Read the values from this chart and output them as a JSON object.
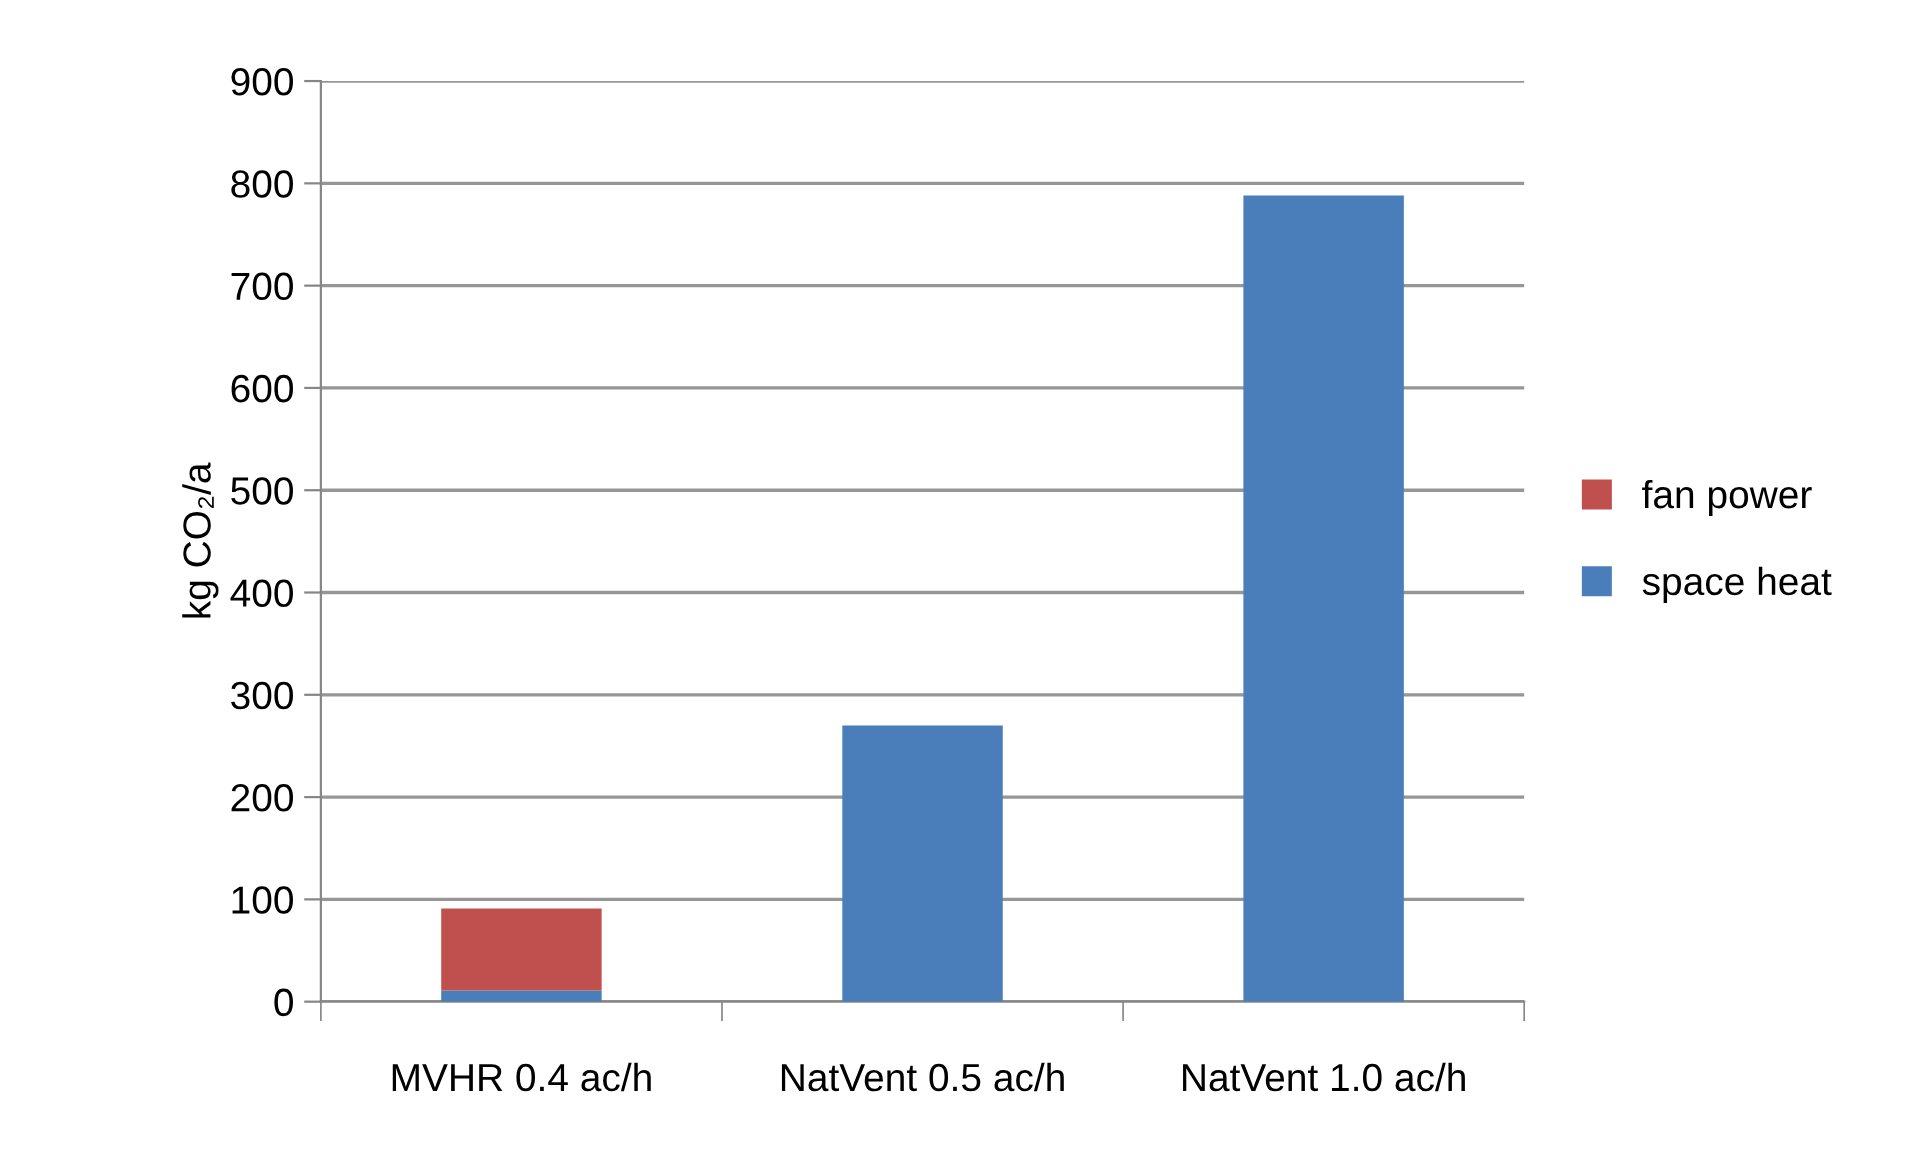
{
  "chart_data": {
    "type": "bar",
    "stacked": true,
    "ylabel": "kg CO₂/a",
    "categories": [
      "MVHR 0.4 ac/h",
      "NatVent 0.5 ac/h",
      "NatVent 1.0 ac/h"
    ],
    "series": [
      {
        "name": "space heat",
        "color": "#4a7ebb",
        "values": [
          11,
          270,
          788
        ]
      },
      {
        "name": "fan power",
        "color": "#c0504d",
        "values": [
          80,
          0,
          0
        ]
      }
    ],
    "ylim": [
      0,
      900
    ],
    "yticks": [
      0,
      100,
      200,
      300,
      400,
      500,
      600,
      700,
      800,
      900
    ],
    "grid": "y",
    "legend": "right"
  }
}
